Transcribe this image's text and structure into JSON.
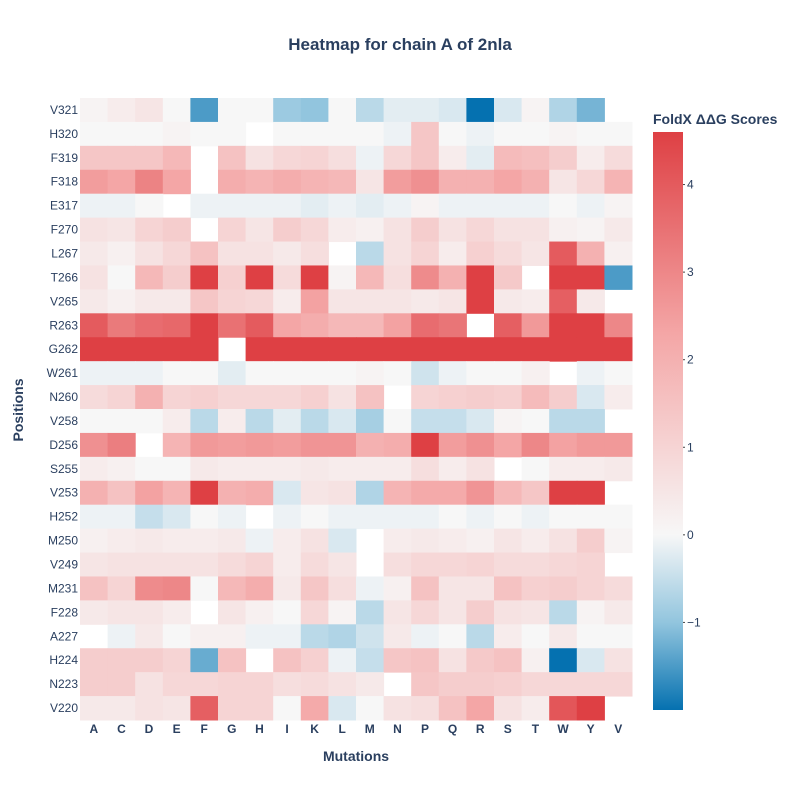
{
  "chart_data": {
    "type": "heatmap",
    "title": "Heatmap for chain A of 2nla",
    "xlabel": "Mutations",
    "ylabel": "Positions",
    "colorbar_title": "FoldX ΔΔG Scores",
    "colorscale": [
      "#0571b0",
      "#92c5de",
      "#f7f7f7",
      "#f4a6a6",
      "#de4044"
    ],
    "zrange": [
      -2.0,
      4.6
    ],
    "colorbar_ticks": [
      "4",
      "3",
      "2",
      "1",
      "0",
      "−1"
    ],
    "colorbar_tick_values": [
      4,
      3,
      2,
      1,
      0,
      -1
    ],
    "x": [
      "A",
      "C",
      "D",
      "E",
      "F",
      "G",
      "H",
      "I",
      "K",
      "L",
      "M",
      "N",
      "P",
      "Q",
      "R",
      "S",
      "T",
      "W",
      "Y",
      "V"
    ],
    "y": [
      "V321",
      "H320",
      "F319",
      "F318",
      "E317",
      "F270",
      "L267",
      "T266",
      "V265",
      "R263",
      "G262",
      "W261",
      "N260",
      "V258",
      "D256",
      "S255",
      "V253",
      "H252",
      "M250",
      "V249",
      "M231",
      "F228",
      "A227",
      "H224",
      "N223",
      "V220"
    ],
    "z": [
      [
        0.1,
        0.3,
        0.5,
        0.0,
        -1.5,
        0.0,
        0.0,
        -0.9,
        -1.0,
        0.0,
        -0.6,
        -0.2,
        -0.2,
        -0.3,
        -2.0,
        -0.3,
        0.1,
        -0.7,
        -1.2,
        null
      ],
      [
        0.0,
        0.0,
        0.0,
        0.1,
        0.0,
        0.0,
        null,
        0.0,
        0.0,
        0.0,
        0.0,
        -0.1,
        1.4,
        0.0,
        -0.1,
        0.0,
        0.0,
        0.1,
        0.0,
        0.0
      ],
      [
        1.4,
        1.4,
        1.4,
        1.8,
        null,
        1.5,
        0.6,
        0.9,
        1.0,
        0.7,
        -0.1,
        0.9,
        1.4,
        0.3,
        -0.2,
        1.7,
        1.6,
        1.2,
        0.3,
        0.8
      ],
      [
        2.5,
        2.3,
        3.1,
        2.3,
        null,
        2.1,
        1.9,
        2.1,
        1.9,
        1.8,
        0.5,
        2.5,
        2.8,
        2.0,
        2.0,
        2.3,
        2.0,
        0.5,
        0.9,
        1.9
      ],
      [
        -0.1,
        -0.1,
        0.0,
        null,
        -0.1,
        -0.1,
        -0.1,
        -0.1,
        -0.2,
        -0.1,
        -0.2,
        -0.1,
        0.1,
        -0.1,
        -0.1,
        -0.1,
        -0.1,
        0.0,
        -0.1,
        0.1
      ],
      [
        0.6,
        0.5,
        1.0,
        1.2,
        null,
        1.0,
        0.5,
        1.2,
        0.9,
        0.3,
        0.2,
        0.6,
        1.2,
        0.6,
        0.9,
        0.6,
        0.6,
        0.2,
        0.1,
        0.4
      ],
      [
        0.4,
        0.2,
        0.6,
        0.9,
        1.5,
        0.6,
        0.6,
        0.4,
        0.7,
        null,
        -0.6,
        0.6,
        1.0,
        0.3,
        1.1,
        0.8,
        0.5,
        4.0,
        2.0,
        0.2
      ],
      [
        0.6,
        0.0,
        1.8,
        1.2,
        4.6,
        1.1,
        4.6,
        0.8,
        4.6,
        0.1,
        1.8,
        0.7,
        2.9,
        2.0,
        4.6,
        1.3,
        null,
        4.6,
        4.6,
        -1.5
      ],
      [
        0.4,
        0.2,
        0.4,
        0.4,
        1.4,
        1.0,
        0.9,
        0.3,
        2.4,
        0.5,
        0.5,
        0.5,
        0.4,
        0.5,
        4.6,
        0.4,
        0.3,
        3.9,
        0.4,
        null
      ],
      [
        4.0,
        3.3,
        3.6,
        3.7,
        4.6,
        3.5,
        4.0,
        2.3,
        2.1,
        1.8,
        1.8,
        2.4,
        3.6,
        3.4,
        null,
        3.9,
        2.6,
        4.6,
        4.6,
        3.0
      ],
      [
        4.6,
        4.6,
        4.6,
        4.6,
        4.6,
        null,
        4.6,
        4.6,
        4.6,
        4.6,
        4.6,
        4.6,
        4.6,
        4.6,
        4.6,
        4.6,
        4.6,
        4.6,
        4.6,
        4.6
      ],
      [
        -0.1,
        -0.1,
        -0.1,
        0.0,
        0.0,
        -0.2,
        0.0,
        0.0,
        0.0,
        0.0,
        0.1,
        0.0,
        -0.4,
        -0.1,
        0.0,
        0.0,
        0.2,
        null,
        -0.1,
        0.0
      ],
      [
        0.8,
        1.0,
        2.0,
        1.0,
        1.1,
        0.9,
        0.9,
        0.9,
        1.1,
        0.6,
        1.5,
        null,
        1.0,
        1.1,
        1.2,
        1.1,
        1.7,
        1.2,
        -0.3,
        0.3
      ],
      [
        0.0,
        0.0,
        0.0,
        0.3,
        -0.6,
        0.3,
        -0.6,
        -0.2,
        -0.6,
        -0.3,
        -0.8,
        0.0,
        -0.5,
        -0.5,
        -0.3,
        0.1,
        0.0,
        -0.6,
        -0.6,
        null
      ],
      [
        2.8,
        3.2,
        null,
        1.9,
        2.6,
        2.5,
        2.6,
        2.5,
        2.7,
        2.7,
        2.0,
        2.1,
        4.6,
        2.5,
        2.8,
        2.3,
        3.0,
        2.4,
        2.6,
        2.6
      ],
      [
        0.3,
        0.2,
        0.0,
        0.0,
        0.4,
        0.3,
        0.3,
        0.3,
        0.4,
        0.3,
        0.3,
        0.3,
        0.7,
        0.3,
        0.6,
        null,
        0.0,
        0.3,
        0.3,
        0.4
      ],
      [
        2.0,
        1.5,
        2.4,
        1.9,
        4.6,
        2.0,
        2.1,
        -0.3,
        0.5,
        0.6,
        -0.7,
        1.9,
        2.2,
        2.2,
        2.7,
        1.8,
        1.4,
        4.6,
        4.6,
        null
      ],
      [
        -0.1,
        -0.1,
        -0.5,
        -0.3,
        0.0,
        -0.1,
        null,
        -0.1,
        0.0,
        -0.1,
        -0.1,
        -0.1,
        -0.1,
        0.0,
        -0.1,
        0.0,
        -0.1,
        0.0,
        0.0,
        0.0
      ],
      [
        0.2,
        0.3,
        0.4,
        0.3,
        0.3,
        0.4,
        -0.1,
        0.3,
        0.6,
        -0.3,
        null,
        0.3,
        0.4,
        0.3,
        0.2,
        0.5,
        0.3,
        0.6,
        1.2,
        0.1
      ],
      [
        0.5,
        0.6,
        0.6,
        0.6,
        0.6,
        0.8,
        1.0,
        0.3,
        0.8,
        0.5,
        null,
        0.7,
        0.9,
        0.9,
        1.0,
        0.8,
        0.8,
        0.9,
        1.0,
        null
      ],
      [
        1.5,
        1.0,
        2.9,
        3.0,
        0.0,
        1.8,
        2.1,
        0.4,
        1.4,
        0.7,
        -0.1,
        0.2,
        1.5,
        0.5,
        0.5,
        1.5,
        1.1,
        1.2,
        1.0,
        0.8
      ],
      [
        0.4,
        0.5,
        0.5,
        0.3,
        null,
        0.5,
        0.2,
        0.0,
        0.9,
        0.1,
        -0.6,
        0.5,
        0.9,
        0.5,
        1.2,
        0.6,
        0.5,
        -0.6,
        0.1,
        0.4
      ],
      [
        null,
        -0.1,
        0.4,
        0.0,
        0.2,
        0.2,
        -0.1,
        -0.1,
        -0.6,
        -0.7,
        -0.4,
        0.4,
        -0.1,
        0.0,
        -0.6,
        0.3,
        0.0,
        0.4,
        0.0,
        0.0
      ],
      [
        1.2,
        1.2,
        1.2,
        1.0,
        -1.3,
        1.5,
        null,
        1.5,
        1.1,
        -0.1,
        -0.5,
        1.4,
        1.5,
        0.6,
        1.3,
        1.5,
        0.2,
        -2.0,
        -0.3,
        0.6
      ],
      [
        1.2,
        1.2,
        0.6,
        0.9,
        0.9,
        1.0,
        1.0,
        0.7,
        0.8,
        0.6,
        0.4,
        null,
        1.4,
        1.2,
        1.2,
        1.1,
        0.9,
        0.9,
        0.9,
        0.9
      ],
      [
        0.4,
        0.4,
        0.6,
        0.5,
        3.9,
        1.0,
        1.0,
        0.0,
        2.2,
        -0.3,
        0.0,
        0.6,
        0.7,
        1.5,
        2.3,
        0.6,
        0.3,
        4.1,
        4.6,
        null
      ]
    ]
  }
}
